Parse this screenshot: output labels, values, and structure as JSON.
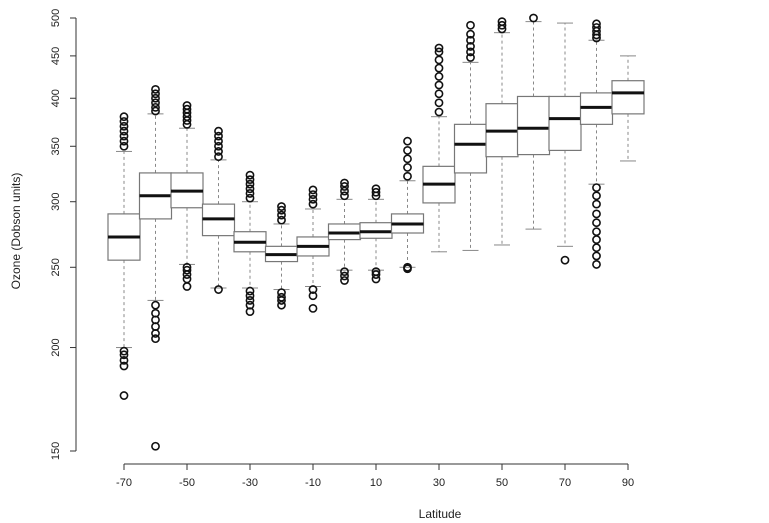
{
  "chart_data": {
    "type": "boxplot",
    "xlabel": "Latitude",
    "ylabel": "Ozone (Dobson units)",
    "y_scale": "log",
    "ylim": [
      150,
      500
    ],
    "xlim": [
      -75,
      90
    ],
    "x_ticks": [
      -70,
      -50,
      -30,
      -10,
      10,
      30,
      50,
      70,
      90
    ],
    "y_ticks": [
      150,
      200,
      250,
      300,
      350,
      400,
      450,
      500
    ],
    "grid": false,
    "legend": "none",
    "colors": {
      "box_fill": "#ffffff",
      "box_stroke": "#777777",
      "median": "#111111",
      "whisker": "#888888",
      "outlier": "#111111"
    },
    "boxes": [
      {
        "x": -70,
        "whisker_low": 200,
        "q1": 255,
        "median": 272,
        "q3": 290,
        "whisker_high": 345,
        "outliers_low": [
          198,
          196,
          193,
          190,
          175
        ],
        "outliers_high": [
          350,
          355,
          360,
          365,
          370,
          375,
          380
        ]
      },
      {
        "x": -60,
        "whisker_low": 228,
        "q1": 286,
        "median": 305,
        "q3": 325,
        "whisker_high": 383,
        "outliers_low": [
          225,
          220,
          216,
          212,
          208,
          205,
          152
        ],
        "outliers_high": [
          386,
          390,
          395,
          400,
          405,
          410
        ]
      },
      {
        "x": -50,
        "whisker_low": 252,
        "q1": 295,
        "median": 309,
        "q3": 325,
        "whisker_high": 368,
        "outliers_low": [
          250,
          248,
          245,
          242,
          237
        ],
        "outliers_high": [
          372,
          376,
          380,
          384,
          388,
          392
        ]
      },
      {
        "x": -40,
        "whisker_low": 236,
        "q1": 273,
        "median": 286,
        "q3": 298,
        "whisker_high": 337,
        "outliers_low": [
          235
        ],
        "outliers_high": [
          340,
          345,
          350,
          355,
          360,
          365
        ]
      },
      {
        "x": -30,
        "whisker_low": 236,
        "q1": 261,
        "median": 268,
        "q3": 276,
        "whisker_high": 300,
        "outliers_low": [
          234,
          231,
          228,
          225,
          221
        ],
        "outliers_high": [
          303,
          307,
          311,
          315,
          319,
          323
        ]
      },
      {
        "x": -20,
        "whisker_low": 235,
        "q1": 254,
        "median": 259,
        "q3": 265,
        "whisker_high": 282,
        "outliers_low": [
          233,
          230,
          228,
          225
        ],
        "outliers_high": [
          285,
          289,
          293,
          296
        ]
      },
      {
        "x": -10,
        "whisker_low": 237,
        "q1": 258,
        "median": 265,
        "q3": 272,
        "whisker_high": 294,
        "outliers_low": [
          235,
          231,
          223
        ],
        "outliers_high": [
          298,
          302,
          306,
          310
        ]
      },
      {
        "x": 0,
        "whisker_low": 248,
        "q1": 270,
        "median": 275,
        "q3": 282,
        "whisker_high": 302,
        "outliers_low": [
          247,
          244,
          241
        ],
        "outliers_high": [
          305,
          309,
          313,
          316
        ]
      },
      {
        "x": 10,
        "whisker_low": 248,
        "q1": 271,
        "median": 276,
        "q3": 283,
        "whisker_high": 302,
        "outliers_low": [
          247,
          245,
          242
        ],
        "outliers_high": [
          305,
          308,
          311
        ]
      },
      {
        "x": 20,
        "whisker_low": 250,
        "q1": 275,
        "median": 282,
        "q3": 290,
        "whisker_high": 318,
        "outliers_low": [
          250,
          249
        ],
        "outliers_high": [
          322,
          330,
          338,
          346,
          355
        ]
      },
      {
        "x": 30,
        "whisker_low": 261,
        "q1": 299,
        "median": 315,
        "q3": 331,
        "whisker_high": 380,
        "outliers_low": [],
        "outliers_high": [
          385,
          395,
          405,
          415,
          425,
          435,
          445,
          455,
          460
        ]
      },
      {
        "x": 40,
        "whisker_low": 262,
        "q1": 325,
        "median": 352,
        "q3": 372,
        "whisker_high": 442,
        "outliers_low": [],
        "outliers_high": [
          448,
          455,
          462,
          470,
          478,
          490
        ]
      },
      {
        "x": 50,
        "whisker_low": 266,
        "q1": 340,
        "median": 365,
        "q3": 394,
        "whisker_high": 480,
        "outliers_low": [],
        "outliers_high": [
          485,
          490,
          495
        ]
      },
      {
        "x": 60,
        "whisker_low": 278,
        "q1": 342,
        "median": 368,
        "q3": 402,
        "whisker_high": 495,
        "outliers_low": [],
        "outliers_high": [
          500
        ]
      },
      {
        "x": 70,
        "whisker_low": 265,
        "q1": 346,
        "median": 378,
        "q3": 402,
        "whisker_high": 493,
        "outliers_low": [
          255
        ],
        "outliers_high": []
      },
      {
        "x": 80,
        "whisker_low": 315,
        "q1": 372,
        "median": 390,
        "q3": 406,
        "whisker_high": 470,
        "outliers_low": [
          312,
          305,
          298,
          290,
          283,
          276,
          270,
          264,
          258,
          252
        ],
        "outliers_high": [
          473,
          477,
          482,
          487,
          492
        ]
      },
      {
        "x": 90,
        "whisker_low": 336,
        "q1": 383,
        "median": 406,
        "q3": 420,
        "whisker_high": 450,
        "outliers_low": [],
        "outliers_high": []
      }
    ]
  }
}
